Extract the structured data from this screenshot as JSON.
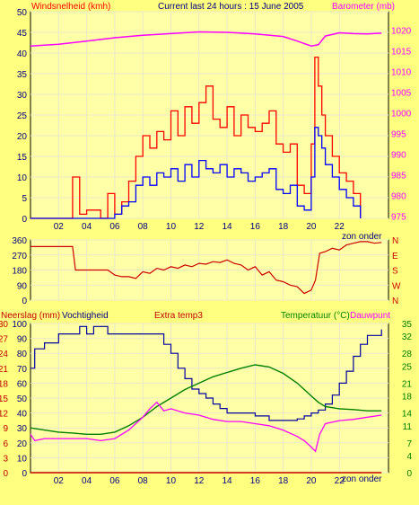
{
  "header": {
    "wind_label": "Windsnelheid (kmh)",
    "current_label": "Current last 24 hours : 15 June 2005",
    "baro_label": "Barometer (mb)"
  },
  "panel3_header": {
    "rain_label": "Neerslag (mm)",
    "hum_label": "Vochtigheid",
    "extra_label": "Extra temp3",
    "temp_label": "Temperatuur (°C)",
    "dew_label": "Dauwpunt"
  },
  "sun_label": "zon onder",
  "colors": {
    "background": "#ffff80",
    "plot_background": "#ffffa8",
    "grid": "#e8e8c8",
    "axis": "#000000",
    "wind_gust": "#ff0000",
    "wind_avg": "#0000ff",
    "barometer": "#ff00ff",
    "direction": "#cc0000",
    "humidity": "#0000a0",
    "temperature": "#008000",
    "dewpoint": "#ff00ff",
    "rain": "#c00000"
  },
  "chart_data": [
    {
      "type": "bar",
      "name": "wind-barometer",
      "xlabel": "",
      "x_tick_labels": [
        "02",
        "04",
        "06",
        "08",
        "10",
        "12",
        "14",
        "16",
        "18",
        "20",
        "22"
      ],
      "x_ticks": [
        2,
        4,
        6,
        8,
        10,
        12,
        14,
        16,
        18,
        20,
        22
      ],
      "xlim": [
        0,
        25.5
      ],
      "y_left_ticks": [
        0,
        5,
        10,
        15,
        20,
        25,
        30,
        35,
        40,
        45,
        50
      ],
      "ylim_left": [
        0,
        50
      ],
      "y_right_ticks": [
        975,
        980,
        985,
        990,
        995,
        1000,
        1005,
        1010,
        1015,
        1020
      ],
      "ylim_right": [
        974.5,
        1024.5
      ],
      "series": [
        {
          "name": "Windsnelheid (kmh)",
          "kind": "gust",
          "x": [
            0,
            2,
            3,
            3.5,
            4,
            5,
            5.5,
            6,
            6.5,
            7,
            7.5,
            8,
            8.5,
            9,
            9.5,
            10,
            10.5,
            11,
            11.5,
            12,
            12.5,
            13,
            13.5,
            14,
            14.5,
            15,
            15.5,
            16,
            16.5,
            17,
            17.5,
            18,
            18.5,
            19,
            19.5,
            20,
            20.25,
            20.5,
            20.75,
            21,
            21.5,
            22,
            22.5,
            23,
            23.5
          ],
          "values": [
            0,
            0,
            10,
            1,
            2,
            0,
            6,
            1,
            4,
            9,
            15,
            20,
            17,
            21,
            19,
            26,
            20,
            27,
            23,
            28,
            32,
            24,
            22,
            27,
            20,
            25,
            22,
            21,
            23,
            26,
            18,
            16,
            18,
            8,
            6,
            18,
            39,
            32,
            25,
            20,
            15,
            11,
            9,
            6,
            0
          ]
        },
        {
          "name": "Windsnelheid (kmh)",
          "kind": "average",
          "x": [
            0,
            3,
            5,
            6,
            6.5,
            7,
            7.5,
            8,
            8.5,
            9,
            9.5,
            10,
            10.5,
            11,
            11.5,
            12,
            12.5,
            13,
            13.5,
            14,
            14.5,
            15,
            15.5,
            16,
            16.5,
            17,
            17.5,
            18,
            18.5,
            19,
            19.5,
            20,
            20.25,
            20.5,
            20.75,
            21,
            21.5,
            22,
            22.5,
            23,
            23.5
          ],
          "values": [
            0,
            0,
            0,
            1,
            3,
            4,
            8,
            10,
            8,
            11,
            10,
            12,
            9,
            13,
            10,
            14,
            12,
            11,
            13,
            10,
            12,
            11,
            9,
            10,
            11,
            12,
            7,
            6,
            8,
            3,
            2,
            10,
            22,
            20,
            17,
            13,
            10,
            7,
            5,
            3,
            0
          ]
        },
        {
          "name": "Barometer (mb)",
          "axis": "right",
          "x": [
            0,
            2,
            4,
            6,
            8,
            10,
            12,
            14,
            16,
            18,
            19,
            20,
            20.5,
            21,
            22,
            23,
            24,
            25
          ],
          "values": [
            1016.2,
            1016.6,
            1017.4,
            1018.2,
            1018.8,
            1019.2,
            1019.6,
            1019.5,
            1019.1,
            1018.5,
            1017.4,
            1016.2,
            1016.5,
            1018.6,
            1019.4,
            1019.2,
            1019.1,
            1019.3
          ]
        }
      ]
    },
    {
      "type": "line",
      "name": "wind-direction",
      "x_tick_labels": [
        "02",
        "04",
        "06",
        "08",
        "10",
        "12",
        "14",
        "16",
        "18",
        "20",
        "22"
      ],
      "x_ticks": [
        2,
        4,
        6,
        8,
        10,
        12,
        14,
        16,
        18,
        20,
        22
      ],
      "xlim": [
        0,
        25.5
      ],
      "y_left_ticks": [
        0,
        90,
        180,
        270,
        360
      ],
      "y_right_labels": [
        "N",
        "W",
        "S",
        "E",
        "N"
      ],
      "ylim": [
        0,
        360
      ],
      "series": [
        {
          "name": "wind direction",
          "x": [
            0,
            1,
            2,
            3,
            3.2,
            4,
            5,
            5.5,
            6,
            6.5,
            7,
            7.5,
            8,
            8.5,
            9,
            9.5,
            10,
            10.5,
            11,
            11.5,
            12,
            12.5,
            13,
            13.5,
            14,
            14.5,
            15,
            15.5,
            16,
            16.5,
            17,
            17.5,
            18,
            18.5,
            19,
            19.5,
            20,
            20.3,
            20.6,
            21,
            21.5,
            22,
            22.5,
            23,
            23.5,
            24,
            24.5,
            25
          ],
          "values": [
            320,
            320,
            320,
            320,
            180,
            180,
            180,
            180,
            150,
            140,
            140,
            130,
            170,
            160,
            190,
            180,
            200,
            190,
            210,
            200,
            220,
            215,
            230,
            225,
            240,
            220,
            210,
            180,
            200,
            150,
            170,
            120,
            110,
            90,
            80,
            40,
            60,
            120,
            280,
            290,
            310,
            300,
            330,
            340,
            350,
            350,
            340,
            345
          ]
        }
      ]
    },
    {
      "type": "line",
      "name": "humidity-temperature",
      "x_tick_labels": [
        "02",
        "04",
        "06",
        "08",
        "10",
        "12",
        "14",
        "16",
        "18",
        "20",
        "22"
      ],
      "x_ticks": [
        2,
        4,
        6,
        8,
        10,
        12,
        14,
        16,
        18,
        20,
        22
      ],
      "xlim": [
        0,
        25.5
      ],
      "y_left_rain_ticks": [
        0,
        3,
        6,
        9,
        12,
        15,
        18,
        21,
        24,
        27,
        30
      ],
      "y_left_hum_ticks": [
        0,
        10,
        20,
        30,
        40,
        50,
        60,
        70,
        80,
        90,
        100
      ],
      "y_right_temp_ticks": [
        0,
        4,
        7,
        11,
        14,
        18,
        21,
        25,
        28,
        32,
        35
      ],
      "ylim_rain": [
        0,
        30
      ],
      "ylim_hum": [
        0,
        100
      ],
      "ylim_temp": [
        0,
        35
      ],
      "series": [
        {
          "name": "Vochtigheid",
          "axis": "hum",
          "x": [
            0,
            0.3,
            1,
            1.5,
            2,
            2.5,
            3,
            3.5,
            4,
            4.5,
            5,
            5.5,
            6,
            7,
            8,
            9,
            9.5,
            10,
            10.5,
            11,
            11.5,
            12,
            12.5,
            13,
            13.5,
            14,
            15,
            16,
            17,
            18,
            19,
            19.5,
            20,
            20.5,
            21,
            21.5,
            22,
            22.5,
            23,
            23.5,
            24,
            25
          ],
          "values": [
            70,
            83,
            87,
            87,
            93,
            93,
            93,
            98,
            93,
            98,
            98,
            93,
            93,
            93,
            93,
            93,
            86,
            80,
            70,
            63,
            56,
            53,
            50,
            46,
            43,
            40,
            40,
            38,
            35,
            35,
            36,
            38,
            40,
            42,
            46,
            52,
            60,
            68,
            78,
            86,
            92,
            96
          ]
        },
        {
          "name": "Temperatuur (°C)",
          "axis": "temp",
          "x": [
            0,
            1,
            2,
            3,
            4,
            5,
            6,
            7,
            8,
            9,
            10,
            11,
            12,
            13,
            14,
            15,
            16,
            17,
            18,
            19,
            19.5,
            20,
            20.5,
            21,
            22,
            23,
            24,
            25
          ],
          "values": [
            10.5,
            10,
            9.5,
            9.3,
            9,
            9,
            9.5,
            11,
            13,
            15.5,
            17.5,
            19.5,
            21,
            22.5,
            23.5,
            24.5,
            25.3,
            24.8,
            23.3,
            21,
            19.5,
            18,
            16.5,
            15.5,
            15,
            14.8,
            14.5,
            14.5
          ]
        },
        {
          "name": "Dauwpunt",
          "axis": "temp",
          "x": [
            0,
            0.3,
            1,
            2,
            3,
            4,
            5,
            6,
            7,
            8,
            8.5,
            9,
            9.5,
            10,
            11,
            12,
            13,
            14,
            15,
            16,
            17,
            18,
            19,
            19.5,
            20,
            20.3,
            20.6,
            21,
            22,
            23,
            24,
            25
          ],
          "values": [
            9,
            7.5,
            8,
            8,
            8,
            8,
            7.5,
            8,
            10,
            13,
            15,
            16.5,
            14.5,
            15,
            14,
            13.5,
            12.5,
            12,
            12,
            11.5,
            11,
            10,
            8.5,
            7.5,
            6,
            5,
            9,
            11.5,
            12.2,
            12.5,
            13,
            13.5
          ]
        },
        {
          "name": "Neerslag (mm)",
          "axis": "rain",
          "x": [
            0,
            25
          ],
          "values": [
            0,
            0
          ]
        }
      ]
    }
  ]
}
